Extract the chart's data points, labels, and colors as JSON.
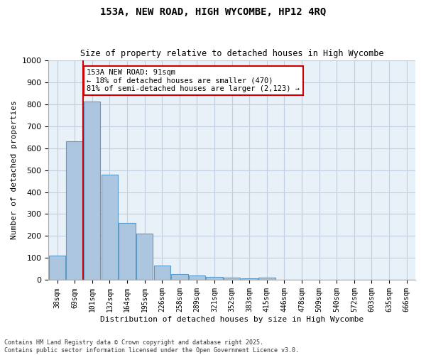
{
  "title": "153A, NEW ROAD, HIGH WYCOMBE, HP12 4RQ",
  "subtitle": "Size of property relative to detached houses in High Wycombe",
  "xlabel": "Distribution of detached houses by size in High Wycombe",
  "ylabel": "Number of detached properties",
  "categories": [
    "38sqm",
    "69sqm",
    "101sqm",
    "132sqm",
    "164sqm",
    "195sqm",
    "226sqm",
    "258sqm",
    "289sqm",
    "321sqm",
    "352sqm",
    "383sqm",
    "415sqm",
    "446sqm",
    "478sqm",
    "509sqm",
    "540sqm",
    "572sqm",
    "603sqm",
    "635sqm",
    "666sqm"
  ],
  "values": [
    110,
    630,
    810,
    480,
    260,
    210,
    65,
    27,
    20,
    14,
    10,
    7,
    10,
    0,
    0,
    0,
    0,
    0,
    0,
    0,
    0
  ],
  "bar_color": "#adc6e0",
  "bar_edgecolor": "#5a9ac9",
  "vline_x": 1.5,
  "vline_color": "#cc0000",
  "annotation_text": "153A NEW ROAD: 91sqm\n← 18% of detached houses are smaller (470)\n81% of semi-detached houses are larger (2,123) →",
  "annotation_box_color": "#ffffff",
  "annotation_box_edgecolor": "#cc0000",
  "ylim": [
    0,
    1000
  ],
  "yticks": [
    0,
    100,
    200,
    300,
    400,
    500,
    600,
    700,
    800,
    900,
    1000
  ],
  "grid_color": "#c0cfe0",
  "background_color": "#e8f0f8",
  "footer_line1": "Contains HM Land Registry data © Crown copyright and database right 2025.",
  "footer_line2": "Contains public sector information licensed under the Open Government Licence v3.0."
}
